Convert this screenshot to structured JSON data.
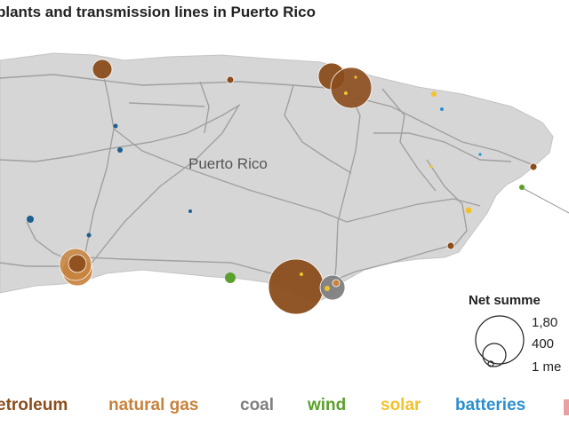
{
  "title": "plants and transmission lines in Puerto Rico",
  "map": {
    "region_label": "Puerto Rico",
    "land_color": "#d6d6d6",
    "line_color": "#9a9a9a"
  },
  "size_legend": {
    "title": "Net summe",
    "values": [
      "1,80",
      "400",
      "1 me"
    ]
  },
  "fuel_legend": [
    {
      "label": "etroleum",
      "color": "#8b4d1c"
    },
    {
      "label": "natural gas",
      "color": "#c8823c"
    },
    {
      "label": "coal",
      "color": "#7f7f7f"
    },
    {
      "label": "wind",
      "color": "#5aa02c"
    },
    {
      "label": "solar",
      "color": "#f2c22c"
    },
    {
      "label": "batteries",
      "color": "#2a8fd0"
    }
  ],
  "plants": [
    {
      "fuel": "petroleum",
      "size": "large"
    },
    {
      "fuel": "petroleum",
      "size": "large"
    },
    {
      "fuel": "petroleum",
      "size": "medium"
    },
    {
      "fuel": "petroleum",
      "size": "medium"
    },
    {
      "fuel": "natural gas",
      "size": "large"
    },
    {
      "fuel": "coal",
      "size": "medium"
    },
    {
      "fuel": "wind",
      "size": "small"
    },
    {
      "fuel": "solar",
      "size": "small"
    },
    {
      "fuel": "batteries",
      "size": "small"
    }
  ]
}
